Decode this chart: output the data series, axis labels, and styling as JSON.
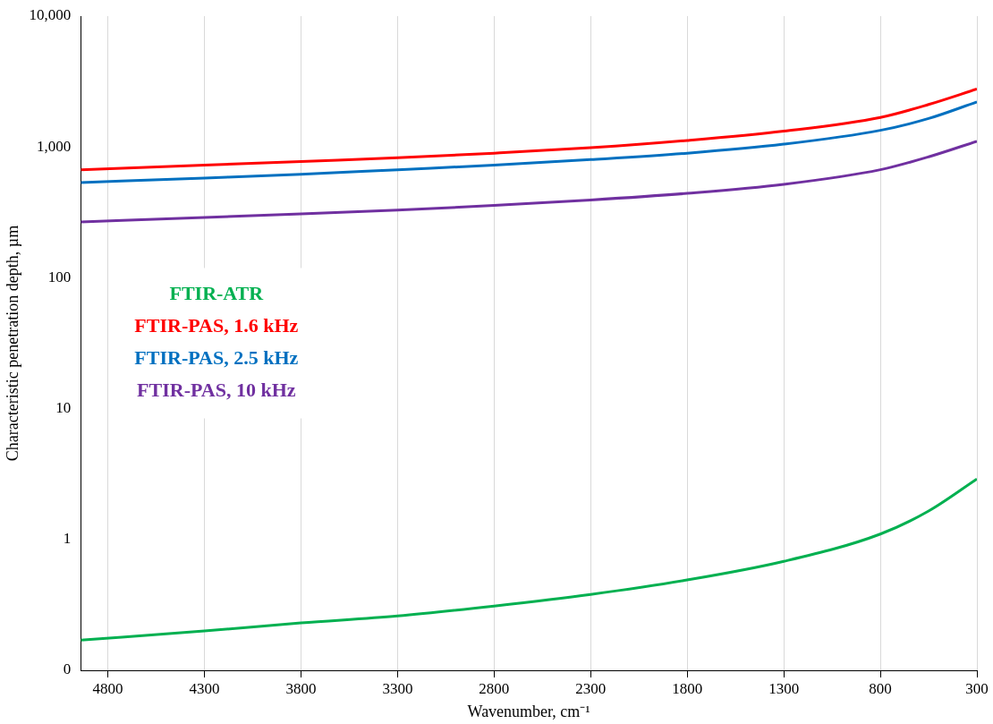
{
  "chart_data": {
    "type": "line",
    "xlabel": "Wavenumber, cm⁻¹",
    "ylabel": "Characteristic penetration depth, µm",
    "x": [
      4940,
      4300,
      3800,
      3300,
      2800,
      2300,
      1800,
      1300,
      800,
      550,
      300
    ],
    "series": [
      {
        "name": "FTIR-ATR",
        "color": "#00b050",
        "values": [
          0.17,
          0.2,
          0.23,
          0.26,
          0.31,
          0.38,
          0.49,
          0.68,
          1.1,
          1.65,
          2.9
        ]
      },
      {
        "name": "FTIR-PAS, 1.6 kHz",
        "color": "#ff0000",
        "values": [
          670,
          726,
          775,
          826,
          896,
          986,
          1120,
          1320,
          1680,
          2110,
          2770
        ]
      },
      {
        "name": "FTIR-PAS, 2.5 kHz",
        "color": "#0070c0",
        "values": [
          534,
          579,
          618,
          670,
          726,
          800,
          896,
          1050,
          1340,
          1650,
          2210
        ]
      },
      {
        "name": "FTIR-PAS, 10 kHz",
        "color": "#7030a0",
        "values": [
          267,
          289,
          308,
          329,
          357,
          393,
          442,
          518,
          670,
          840,
          1105
        ]
      }
    ],
    "xlim": [
      4940,
      300
    ],
    "xticks": [
      4800,
      4300,
      3800,
      3300,
      2800,
      2300,
      1800,
      1300,
      800,
      300
    ],
    "ylim": [
      0.1,
      10000
    ],
    "yticks": [
      {
        "value": 0.1,
        "label": "0"
      },
      1,
      10,
      100,
      {
        "value": 1000,
        "label": "1,000"
      },
      {
        "value": 10000,
        "label": "10,000"
      }
    ],
    "log": true,
    "grid": "x",
    "legend": "left",
    "marker": "none",
    "line_style": "solid"
  }
}
